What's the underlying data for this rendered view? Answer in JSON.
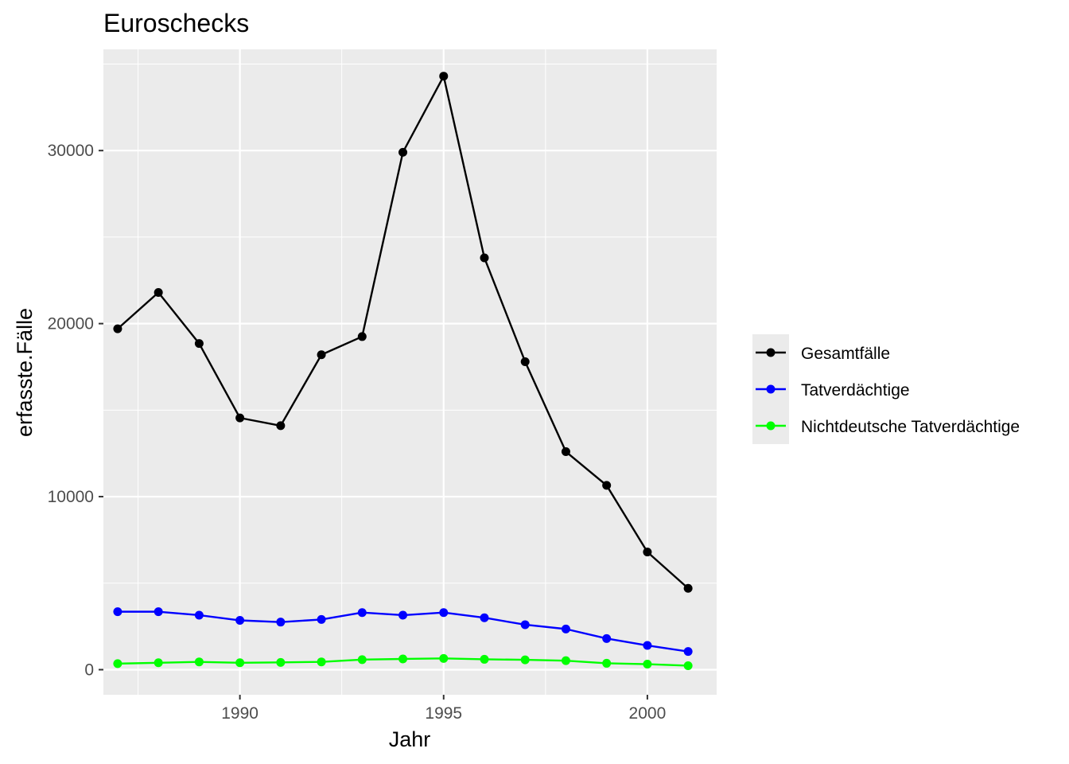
{
  "chart_data": {
    "type": "line",
    "title": "Euroschecks",
    "xlabel": "Jahr",
    "ylabel": "erfasste.Fälle",
    "x": [
      1987,
      1988,
      1989,
      1990,
      1991,
      1992,
      1993,
      1994,
      1995,
      1996,
      1997,
      1998,
      1999,
      2000,
      2001
    ],
    "xlim": [
      1986.65,
      2001.7
    ],
    "ylim": [
      -1450,
      35850
    ],
    "xticks": [
      1990,
      1995,
      2000
    ],
    "yticks": [
      0,
      10000,
      20000,
      30000
    ],
    "xtick_labels": [
      "1990",
      "1995",
      "2000"
    ],
    "ytick_labels": [
      "0",
      "10000",
      "20000",
      "30000"
    ],
    "grid": true,
    "legend_position": "right",
    "series": [
      {
        "name": "Gesamtfälle",
        "color": "#000000",
        "values": [
          19700,
          21800,
          18850,
          14550,
          14100,
          18200,
          19250,
          29900,
          34300,
          23800,
          17800,
          12600,
          10650,
          6800,
          4700
        ]
      },
      {
        "name": "Tatverdächtige",
        "color": "#0000ff",
        "values": [
          3350,
          3350,
          3150,
          2850,
          2750,
          2900,
          3300,
          3150,
          3300,
          3000,
          2600,
          2350,
          1800,
          1400,
          1050
        ]
      },
      {
        "name": "Nichtdeutsche Tatverdächtige",
        "color": "#00ff00",
        "values": [
          350,
          400,
          450,
          400,
          420,
          450,
          580,
          620,
          650,
          600,
          570,
          520,
          370,
          320,
          230
        ]
      }
    ]
  }
}
